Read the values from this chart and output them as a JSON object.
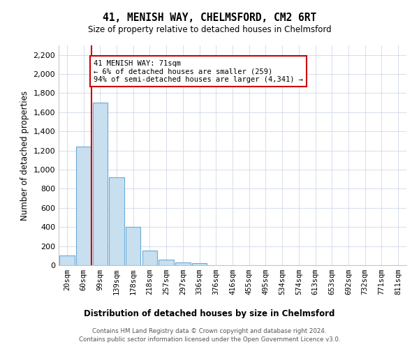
{
  "title": "41, MENISH WAY, CHELMSFORD, CM2 6RT",
  "subtitle": "Size of property relative to detached houses in Chelmsford",
  "xlabel_dist": "Distribution of detached houses by size in Chelmsford",
  "ylabel": "Number of detached properties",
  "categories": [
    "20sqm",
    "60sqm",
    "99sqm",
    "139sqm",
    "178sqm",
    "218sqm",
    "257sqm",
    "297sqm",
    "336sqm",
    "376sqm",
    "416sqm",
    "455sqm",
    "495sqm",
    "534sqm",
    "574sqm",
    "613sqm",
    "653sqm",
    "692sqm",
    "732sqm",
    "771sqm",
    "811sqm"
  ],
  "values": [
    100,
    1240,
    1700,
    920,
    400,
    150,
    60,
    30,
    25,
    0,
    0,
    0,
    0,
    0,
    0,
    0,
    0,
    0,
    0,
    0,
    0
  ],
  "bar_color": "#c8dff0",
  "bar_edge_color": "#6aaad4",
  "ref_line_x": 1.5,
  "ref_line_color": "#cc0000",
  "annotation_line1": "41 MENISH WAY: 71sqm",
  "annotation_line2": "← 6% of detached houses are smaller (259)",
  "annotation_line3": "94% of semi-detached houses are larger (4,341) →",
  "annotation_box_color": "#ffffff",
  "annotation_box_edge_color": "#cc0000",
  "ylim": [
    0,
    2300
  ],
  "yticks": [
    0,
    200,
    400,
    600,
    800,
    1000,
    1200,
    1400,
    1600,
    1800,
    2000,
    2200
  ],
  "footer_line1": "Contains HM Land Registry data © Crown copyright and database right 2024.",
  "footer_line2": "Contains public sector information licensed under the Open Government Licence v3.0.",
  "bg_color": "#ffffff",
  "grid_color": "#d0d8e8"
}
